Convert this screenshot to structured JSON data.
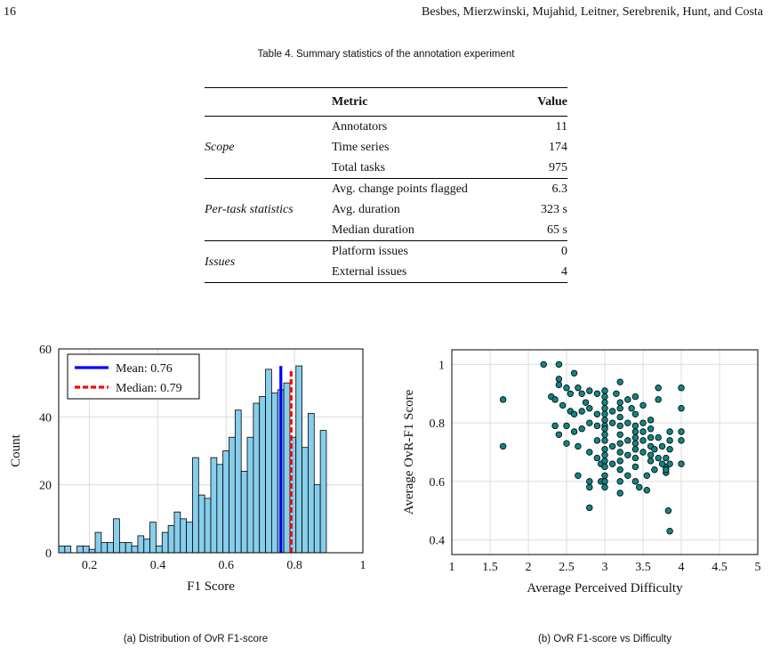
{
  "header": {
    "page_number": "16",
    "authors": "Besbes, Mierzwinski, Mujahid, Leitner, Serebrenik, Hunt, and Costa"
  },
  "table": {
    "caption": "Table 4.  Summary statistics of the annotation experiment",
    "columns": [
      "",
      "Metric",
      "Value"
    ],
    "groups": [
      {
        "name": "Scope",
        "rows": [
          [
            "Annotators",
            "11"
          ],
          [
            "Time series",
            "174"
          ],
          [
            "Total tasks",
            "975"
          ]
        ]
      },
      {
        "name": "Per-task statistics",
        "rows": [
          [
            "Avg. change points flagged",
            "6.3"
          ],
          [
            "Avg. duration",
            "323 s"
          ],
          [
            "Median duration",
            "65 s"
          ]
        ]
      },
      {
        "name": "Issues",
        "rows": [
          [
            "Platform issues",
            "0"
          ],
          [
            "External issues",
            "4"
          ]
        ]
      }
    ]
  },
  "captions": {
    "a": "(a) Distribution of OvR F1-score",
    "b": "(b) OvR F1-score vs Difficulty"
  },
  "chart_data": [
    {
      "type": "bar",
      "xlabel": "F1 Score",
      "ylabel": "Count",
      "xlim": [
        0.11,
        1.0
      ],
      "ylim": [
        0,
        60
      ],
      "xticks": [
        "0.2",
        "0.4",
        "0.6",
        "0.8",
        "1"
      ],
      "yticks": [
        "0",
        "20",
        "40",
        "60"
      ],
      "bin_start": 0.11,
      "bin_width": 0.0178,
      "values": [
        2,
        2,
        0,
        2,
        2,
        1,
        6,
        3,
        3,
        10,
        3,
        3,
        2,
        5,
        4,
        9,
        2,
        6,
        8,
        12,
        10,
        9,
        28,
        17,
        16,
        28,
        26,
        30,
        34,
        42,
        24,
        34,
        44,
        46,
        54,
        47,
        48,
        50,
        34,
        55,
        31,
        41,
        20,
        36
      ],
      "mean": 0.76,
      "median": 0.79,
      "legend": [
        "Mean: 0.76",
        "Median: 0.79"
      ],
      "legend_position": "top-left",
      "colors": {
        "bar": "#87CEEB",
        "mean": "#0000ff",
        "median": "#ff0000"
      },
      "grid": true
    },
    {
      "type": "scatter",
      "xlabel": "Average Perceived Difficulty",
      "ylabel": "Average OvR-F1 Score",
      "xlim": [
        1,
        5
      ],
      "ylim": [
        0.35,
        1.05
      ],
      "xticks": [
        "1",
        "1.5",
        "2",
        "2.5",
        "3",
        "3.5",
        "4",
        "4.5",
        "5"
      ],
      "yticks": [
        "0.4",
        "0.6",
        "0.8",
        "1"
      ],
      "points": [
        [
          1.67,
          0.88
        ],
        [
          1.67,
          0.72
        ],
        [
          2.2,
          1.0
        ],
        [
          2.4,
          1.0
        ],
        [
          2.3,
          0.89
        ],
        [
          2.35,
          0.88
        ],
        [
          2.4,
          0.95
        ],
        [
          2.4,
          0.93
        ],
        [
          2.5,
          0.92
        ],
        [
          2.55,
          0.9
        ],
        [
          2.6,
          0.97
        ],
        [
          2.65,
          0.92
        ],
        [
          2.7,
          0.9
        ],
        [
          2.75,
          0.87
        ],
        [
          2.8,
          0.91
        ],
        [
          2.9,
          0.9
        ],
        [
          2.45,
          0.86
        ],
        [
          2.55,
          0.84
        ],
        [
          2.6,
          0.83
        ],
        [
          2.7,
          0.84
        ],
        [
          2.8,
          0.85
        ],
        [
          2.9,
          0.83
        ],
        [
          2.5,
          0.79
        ],
        [
          2.6,
          0.77
        ],
        [
          2.35,
          0.79
        ],
        [
          2.4,
          0.76
        ],
        [
          2.7,
          0.78
        ],
        [
          2.8,
          0.8
        ],
        [
          2.9,
          0.79
        ],
        [
          2.5,
          0.73
        ],
        [
          2.65,
          0.72
        ],
        [
          2.8,
          0.7
        ],
        [
          2.65,
          0.62
        ],
        [
          2.8,
          0.6
        ],
        [
          2.8,
          0.58
        ],
        [
          2.95,
          0.6
        ],
        [
          2.8,
          0.51
        ],
        [
          2.9,
          0.74
        ],
        [
          2.9,
          0.68
        ],
        [
          2.95,
          0.66
        ],
        [
          3.0,
          0.91
        ],
        [
          3.0,
          0.89
        ],
        [
          3.0,
          0.87
        ],
        [
          3.0,
          0.85
        ],
        [
          3.0,
          0.83
        ],
        [
          3.0,
          0.81
        ],
        [
          3.0,
          0.79
        ],
        [
          3.0,
          0.78
        ],
        [
          3.0,
          0.76
        ],
        [
          3.0,
          0.74
        ],
        [
          3.0,
          0.71
        ],
        [
          3.0,
          0.69
        ],
        [
          3.0,
          0.67
        ],
        [
          3.0,
          0.65
        ],
        [
          3.0,
          0.62
        ],
        [
          3.0,
          0.6
        ],
        [
          3.0,
          0.58
        ],
        [
          3.1,
          0.84
        ],
        [
          3.1,
          0.8
        ],
        [
          3.1,
          0.72
        ],
        [
          3.1,
          0.66
        ],
        [
          3.15,
          0.9
        ],
        [
          3.2,
          0.94
        ],
        [
          3.2,
          0.87
        ],
        [
          3.2,
          0.85
        ],
        [
          3.2,
          0.82
        ],
        [
          3.2,
          0.79
        ],
        [
          3.2,
          0.76
        ],
        [
          3.2,
          0.73
        ],
        [
          3.2,
          0.7
        ],
        [
          3.2,
          0.67
        ],
        [
          3.2,
          0.64
        ],
        [
          3.2,
          0.6
        ],
        [
          3.2,
          0.56
        ],
        [
          3.3,
          0.88
        ],
        [
          3.3,
          0.8
        ],
        [
          3.3,
          0.74
        ],
        [
          3.3,
          0.69
        ],
        [
          3.3,
          0.62
        ],
        [
          3.35,
          0.85
        ],
        [
          3.4,
          0.89
        ],
        [
          3.4,
          0.83
        ],
        [
          3.4,
          0.79
        ],
        [
          3.4,
          0.77
        ],
        [
          3.4,
          0.75
        ],
        [
          3.4,
          0.73
        ],
        [
          3.4,
          0.71
        ],
        [
          3.4,
          0.68
        ],
        [
          3.4,
          0.65
        ],
        [
          3.4,
          0.6
        ],
        [
          3.5,
          0.86
        ],
        [
          3.5,
          0.8
        ],
        [
          3.5,
          0.77
        ],
        [
          3.5,
          0.74
        ],
        [
          3.5,
          0.7
        ],
        [
          3.55,
          0.62
        ],
        [
          3.6,
          0.81
        ],
        [
          3.6,
          0.78
        ],
        [
          3.6,
          0.75
        ],
        [
          3.6,
          0.72
        ],
        [
          3.6,
          0.69
        ],
        [
          3.6,
          0.67
        ],
        [
          3.65,
          0.71
        ],
        [
          3.7,
          0.92
        ],
        [
          3.7,
          0.88
        ],
        [
          3.7,
          0.75
        ],
        [
          3.7,
          0.68
        ],
        [
          3.75,
          0.72
        ],
        [
          3.8,
          0.68
        ],
        [
          3.8,
          0.65
        ],
        [
          3.85,
          0.77
        ],
        [
          3.85,
          0.74
        ],
        [
          3.85,
          0.71
        ],
        [
          3.85,
          0.66
        ],
        [
          3.8,
          0.63
        ],
        [
          3.83,
          0.5
        ],
        [
          3.85,
          0.43
        ],
        [
          3.45,
          0.58
        ],
        [
          3.55,
          0.57
        ],
        [
          3.8,
          0.64
        ],
        [
          4.0,
          0.92
        ],
        [
          4.0,
          0.85
        ],
        [
          4.0,
          0.77
        ],
        [
          4.0,
          0.74
        ],
        [
          4.0,
          0.66
        ],
        [
          3.75,
          0.66
        ],
        [
          3.65,
          0.64
        ]
      ],
      "colors": {
        "point": "#0f8585",
        "edge": "#000000"
      },
      "grid": true
    }
  ]
}
